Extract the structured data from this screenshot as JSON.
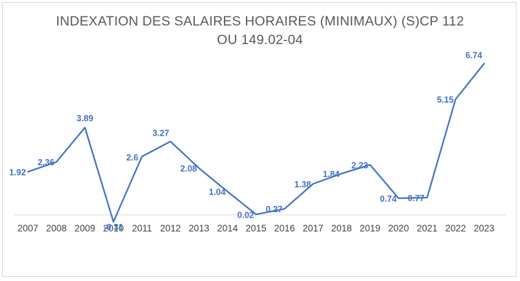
{
  "chart_data": {
    "type": "line",
    "title_line1": "INDEXATION DES SALAIRES HORAIRES (MINIMAUX) (S)CP 112",
    "title_line2": "OU 149.02-04",
    "xlabel": "",
    "ylabel": "",
    "categories": [
      "2007",
      "2008",
      "2009",
      "2010",
      "2011",
      "2012",
      "2013",
      "2014",
      "2015",
      "2016",
      "2017",
      "2018",
      "2019",
      "2020",
      "2021",
      "2022",
      "2023"
    ],
    "series": [
      {
        "values": [
          1.92,
          2.36,
          3.89,
          -0.31,
          2.6,
          3.27,
          2.08,
          1.04,
          0.02,
          0.27,
          1.38,
          1.84,
          2.23,
          0.74,
          0.77,
          5.15,
          6.74
        ],
        "labels": [
          "1.92",
          "2.36",
          "3.89",
          "-0.31",
          "2.6",
          "3.27",
          "2.08",
          "1.04",
          "0.02",
          "0.27",
          "1.38",
          "1.84",
          "2.23",
          "0.74",
          "0.77",
          "5.15",
          "6.74"
        ]
      }
    ],
    "ylim": [
      -0.5,
      7
    ],
    "grid": false,
    "legend": "none",
    "line_color": "#4472c4",
    "axis_color": "#d9d9d9"
  }
}
